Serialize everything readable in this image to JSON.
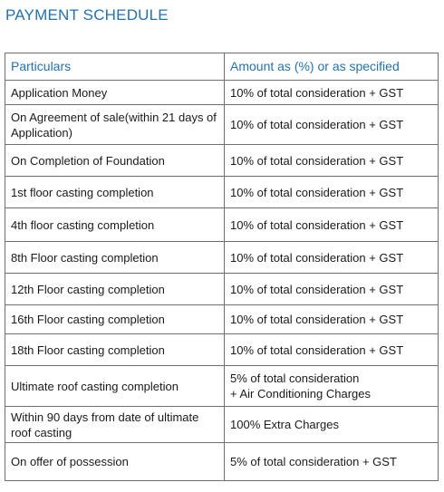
{
  "title": "PAYMENT SCHEDULE",
  "table": {
    "headers": [
      "Particulars",
      "Amount as (%) or as specified"
    ],
    "rows": [
      {
        "particular": "Application Money",
        "amount": "10% of total consideration + GST"
      },
      {
        "particular": "On Agreement of sale(within 21 days of Application)",
        "amount": "10% of total consideration + GST"
      },
      {
        "particular": "On Completion of Foundation",
        "amount": "10% of total consideration + GST"
      },
      {
        "particular": "1st floor casting completion",
        "amount": "10% of total consideration + GST"
      },
      {
        "particular": "4th floor casting completion",
        "amount": "10% of total consideration + GST"
      },
      {
        "particular": "8th Floor casting completion",
        "amount": "10% of total consideration + GST"
      },
      {
        "particular": "12th  Floor casting completion",
        "amount": "10% of total consideration + GST"
      },
      {
        "particular": "16th  Floor casting completion",
        "amount": "10% of total consideration + GST"
      },
      {
        "particular": "18th  Floor casting completion",
        "amount": "10% of total consideration + GST"
      },
      {
        "particular": "Ultimate roof casting completion",
        "amount": "5% of total consideration\n+ Air Conditioning Charges"
      },
      {
        "particular": "Within 90 days from date of ultimate roof casting",
        "amount": "100% Extra Charges"
      },
      {
        "particular": "On offer of possession",
        "amount": "5% of total consideration + GST"
      }
    ]
  },
  "colors": {
    "accent": "#1f72b8",
    "border": "#6f6f6f",
    "text": "#1a1a1a"
  }
}
